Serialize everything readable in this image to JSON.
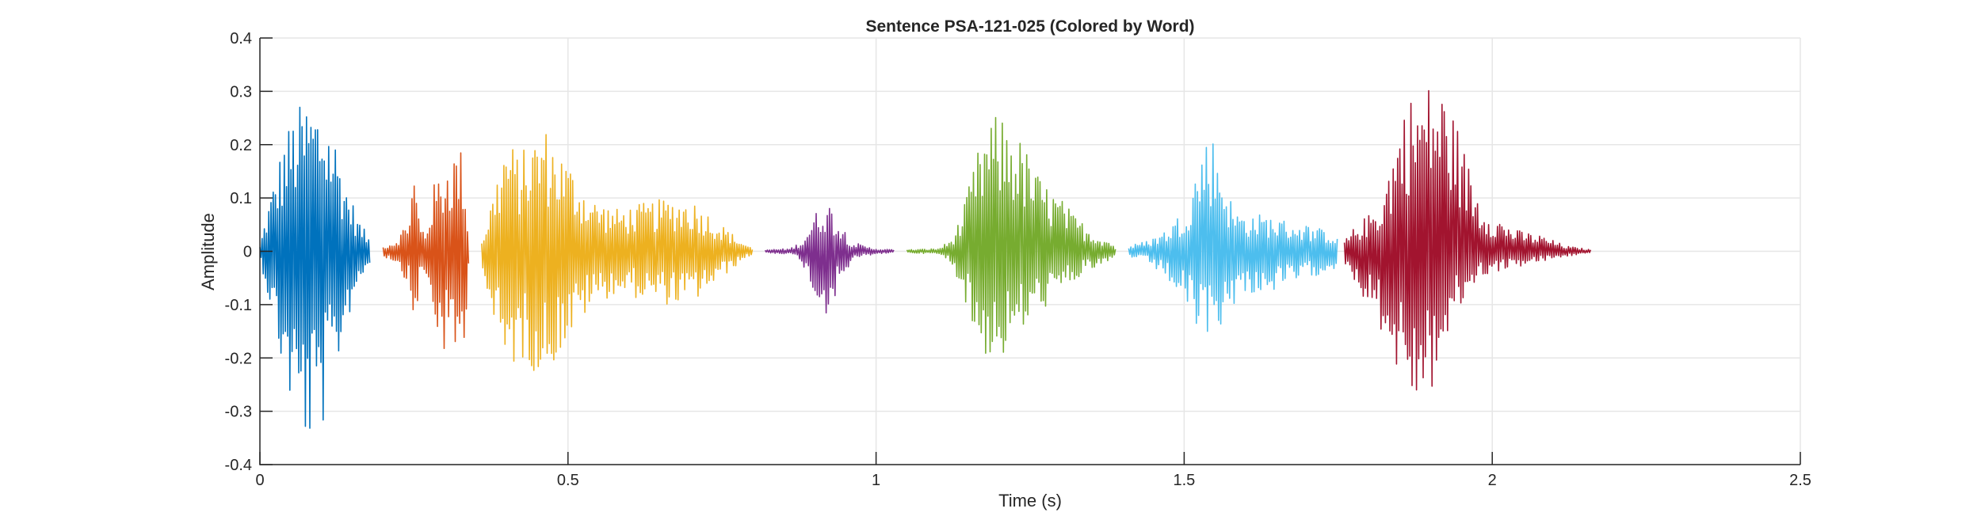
{
  "chart_data": {
    "type": "line",
    "title": "Sentence PSA-121-025 (Colored by Word)",
    "xlabel": "Time (s)",
    "ylabel": "Amplitude",
    "xlim": [
      0,
      2.5
    ],
    "ylim": [
      -0.4,
      0.4
    ],
    "xticks": [
      0,
      0.5,
      1,
      1.5,
      2,
      2.5
    ],
    "xtick_labels": [
      "0",
      "0.5",
      "1",
      "1.5",
      "2",
      "2.5"
    ],
    "yticks": [
      -0.4,
      -0.3,
      -0.2,
      -0.1,
      0,
      0.1,
      0.2,
      0.3,
      0.4
    ],
    "ytick_labels": [
      "-0.4",
      "-0.3",
      "-0.2",
      "-0.1",
      "0",
      "0.1",
      "0.2",
      "0.3",
      "0.4"
    ],
    "grid": true,
    "series": [
      {
        "color": "#0072BD",
        "start": 0.0,
        "end": 0.18,
        "envelope": {
          "t": [
            0.0,
            0.01,
            0.02,
            0.04,
            0.06,
            0.08,
            0.1,
            0.12,
            0.14,
            0.16,
            0.18
          ],
          "upper": [
            0.01,
            0.07,
            0.12,
            0.22,
            0.27,
            0.29,
            0.28,
            0.23,
            0.13,
            0.06,
            0.02
          ],
          "lower": [
            -0.01,
            -0.07,
            -0.12,
            -0.25,
            -0.33,
            -0.37,
            -0.34,
            -0.25,
            -0.14,
            -0.06,
            -0.02
          ]
        }
      },
      {
        "color": "#D95319",
        "start": 0.2,
        "end": 0.34,
        "envelope": {
          "t": [
            0.2,
            0.22,
            0.24,
            0.25,
            0.26,
            0.27,
            0.28,
            0.3,
            0.32,
            0.33,
            0.34
          ],
          "upper": [
            0.01,
            0.02,
            0.06,
            0.16,
            0.05,
            0.04,
            0.12,
            0.17,
            0.2,
            0.19,
            0.02
          ],
          "lower": [
            -0.01,
            -0.02,
            -0.06,
            -0.15,
            -0.06,
            -0.05,
            -0.13,
            -0.2,
            -0.21,
            -0.2,
            -0.02
          ]
        }
      },
      {
        "color": "#EDB120",
        "start": 0.36,
        "end": 0.8,
        "envelope": {
          "t": [
            0.36,
            0.38,
            0.4,
            0.42,
            0.44,
            0.46,
            0.5,
            0.54,
            0.58,
            0.62,
            0.66,
            0.7,
            0.74,
            0.78,
            0.8
          ],
          "upper": [
            0.02,
            0.12,
            0.22,
            0.18,
            0.21,
            0.24,
            0.17,
            0.1,
            0.08,
            0.09,
            0.1,
            0.1,
            0.06,
            0.02,
            0.005
          ],
          "lower": [
            -0.02,
            -0.15,
            -0.24,
            -0.2,
            -0.22,
            -0.24,
            -0.17,
            -0.1,
            -0.08,
            -0.09,
            -0.1,
            -0.1,
            -0.06,
            -0.02,
            -0.005
          ]
        }
      },
      {
        "color": "#7E2F8E",
        "start": 0.82,
        "end": 1.03,
        "envelope": {
          "t": [
            0.82,
            0.86,
            0.88,
            0.9,
            0.92,
            0.94,
            0.96,
            0.98,
            1.0,
            1.03
          ],
          "upper": [
            0.003,
            0.005,
            0.02,
            0.07,
            0.1,
            0.06,
            0.02,
            0.01,
            0.005,
            0.003
          ],
          "lower": [
            -0.003,
            -0.005,
            -0.02,
            -0.09,
            -0.12,
            -0.07,
            -0.02,
            -0.01,
            -0.005,
            -0.003
          ]
        }
      },
      {
        "color": "#77AC30",
        "start": 1.05,
        "end": 1.39,
        "envelope": {
          "t": [
            1.05,
            1.1,
            1.12,
            1.14,
            1.16,
            1.18,
            1.2,
            1.22,
            1.24,
            1.26,
            1.28,
            1.3,
            1.32,
            1.34,
            1.36,
            1.38,
            1.39
          ],
          "upper": [
            0.003,
            0.005,
            0.02,
            0.07,
            0.17,
            0.24,
            0.26,
            0.24,
            0.2,
            0.15,
            0.12,
            0.1,
            0.07,
            0.05,
            0.03,
            0.02,
            0.005
          ],
          "lower": [
            -0.003,
            -0.005,
            -0.02,
            -0.07,
            -0.17,
            -0.2,
            -0.21,
            -0.18,
            -0.15,
            -0.12,
            -0.1,
            -0.08,
            -0.06,
            -0.04,
            -0.03,
            -0.02,
            -0.005
          ]
        }
      },
      {
        "color": "#4DBEEE",
        "start": 1.41,
        "end": 1.75,
        "envelope": {
          "t": [
            1.41,
            1.44,
            1.47,
            1.5,
            1.52,
            1.54,
            1.56,
            1.58,
            1.6,
            1.63,
            1.66,
            1.7,
            1.73,
            1.75
          ],
          "upper": [
            0.01,
            0.02,
            0.04,
            0.08,
            0.16,
            0.24,
            0.17,
            0.08,
            0.07,
            0.07,
            0.06,
            0.05,
            0.04,
            0.03
          ],
          "lower": [
            -0.01,
            -0.02,
            -0.05,
            -0.1,
            -0.15,
            -0.16,
            -0.14,
            -0.1,
            -0.08,
            -0.08,
            -0.07,
            -0.05,
            -0.04,
            -0.03
          ]
        }
      },
      {
        "color": "#A2142F",
        "start": 1.76,
        "end": 2.16,
        "envelope": {
          "t": [
            1.76,
            1.78,
            1.8,
            1.82,
            1.84,
            1.86,
            1.88,
            1.9,
            1.92,
            1.94,
            1.96,
            1.98,
            2.0,
            2.04,
            2.08,
            2.12,
            2.16
          ],
          "upper": [
            0.02,
            0.05,
            0.07,
            0.1,
            0.2,
            0.29,
            0.3,
            0.32,
            0.31,
            0.25,
            0.17,
            0.1,
            0.07,
            0.04,
            0.03,
            0.01,
            0.003
          ],
          "lower": [
            -0.02,
            -0.07,
            -0.1,
            -0.15,
            -0.21,
            -0.27,
            -0.29,
            -0.27,
            -0.2,
            -0.13,
            -0.08,
            -0.05,
            -0.04,
            -0.03,
            -0.02,
            -0.01,
            -0.003
          ]
        }
      }
    ]
  }
}
